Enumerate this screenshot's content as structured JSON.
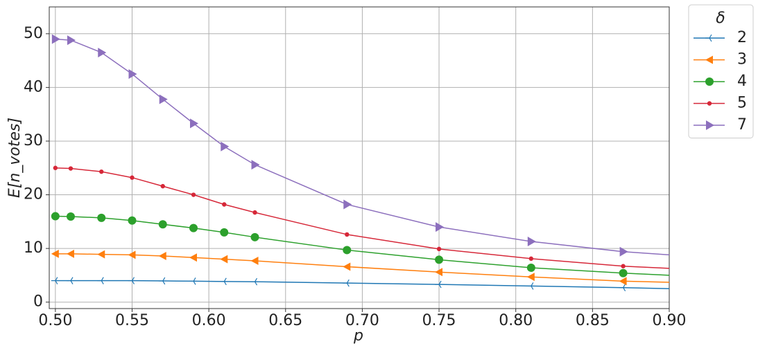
{
  "chart_data": {
    "type": "line",
    "x_label": "p",
    "y_label": "E[n_votes]",
    "legend_title": "δ",
    "legend_position": "outside-right-top",
    "grid": true,
    "x": [
      0.5,
      0.51,
      0.53,
      0.55,
      0.57,
      0.59,
      0.61,
      0.63,
      0.69,
      0.75,
      0.81,
      0.87,
      0.9
    ],
    "series": [
      {
        "name": "2",
        "color": "#1f77b4",
        "marker": "tri_left",
        "values": [
          4.0,
          4.0,
          4.0,
          4.0,
          3.95,
          3.9,
          3.85,
          3.8,
          3.55,
          3.3,
          3.0,
          2.7,
          2.5
        ]
      },
      {
        "name": "3",
        "color": "#ff7f0e",
        "marker": "triangle_left",
        "values": [
          9.0,
          9.0,
          8.9,
          8.8,
          8.6,
          8.3,
          8.0,
          7.7,
          6.6,
          5.6,
          4.7,
          3.9,
          3.7
        ]
      },
      {
        "name": "4",
        "color": "#2ca02c",
        "marker": "circle",
        "values": [
          16.0,
          15.95,
          15.7,
          15.2,
          14.5,
          13.8,
          13.0,
          12.1,
          9.7,
          7.9,
          6.4,
          5.4,
          5.0
        ]
      },
      {
        "name": "5",
        "color": "#d62738",
        "marker": "dot",
        "values": [
          25.0,
          24.9,
          24.3,
          23.2,
          21.6,
          20.0,
          18.2,
          16.7,
          12.6,
          9.9,
          8.1,
          6.7,
          6.3
        ]
      },
      {
        "name": "7",
        "color": "#8c6fbd",
        "marker": "triangle_right",
        "values": [
          49.0,
          48.8,
          46.5,
          42.5,
          37.8,
          33.3,
          29.0,
          25.6,
          18.2,
          14.0,
          11.3,
          9.4,
          8.8
        ]
      }
    ],
    "xlim": [
      0.496,
      0.9
    ],
    "ylim": [
      -1.2,
      55
    ],
    "xticks": [
      {
        "value": 0.5,
        "label": "0.50"
      },
      0.55,
      {
        "value": 0.6,
        "label": "0.60"
      },
      0.65,
      {
        "value": 0.7,
        "label": "0.70"
      },
      0.75,
      {
        "value": 0.8,
        "label": "0.80"
      },
      0.85,
      {
        "value": 0.9,
        "label": "0.90"
      }
    ],
    "yticks": [
      0,
      10,
      20,
      30,
      40,
      50
    ]
  }
}
